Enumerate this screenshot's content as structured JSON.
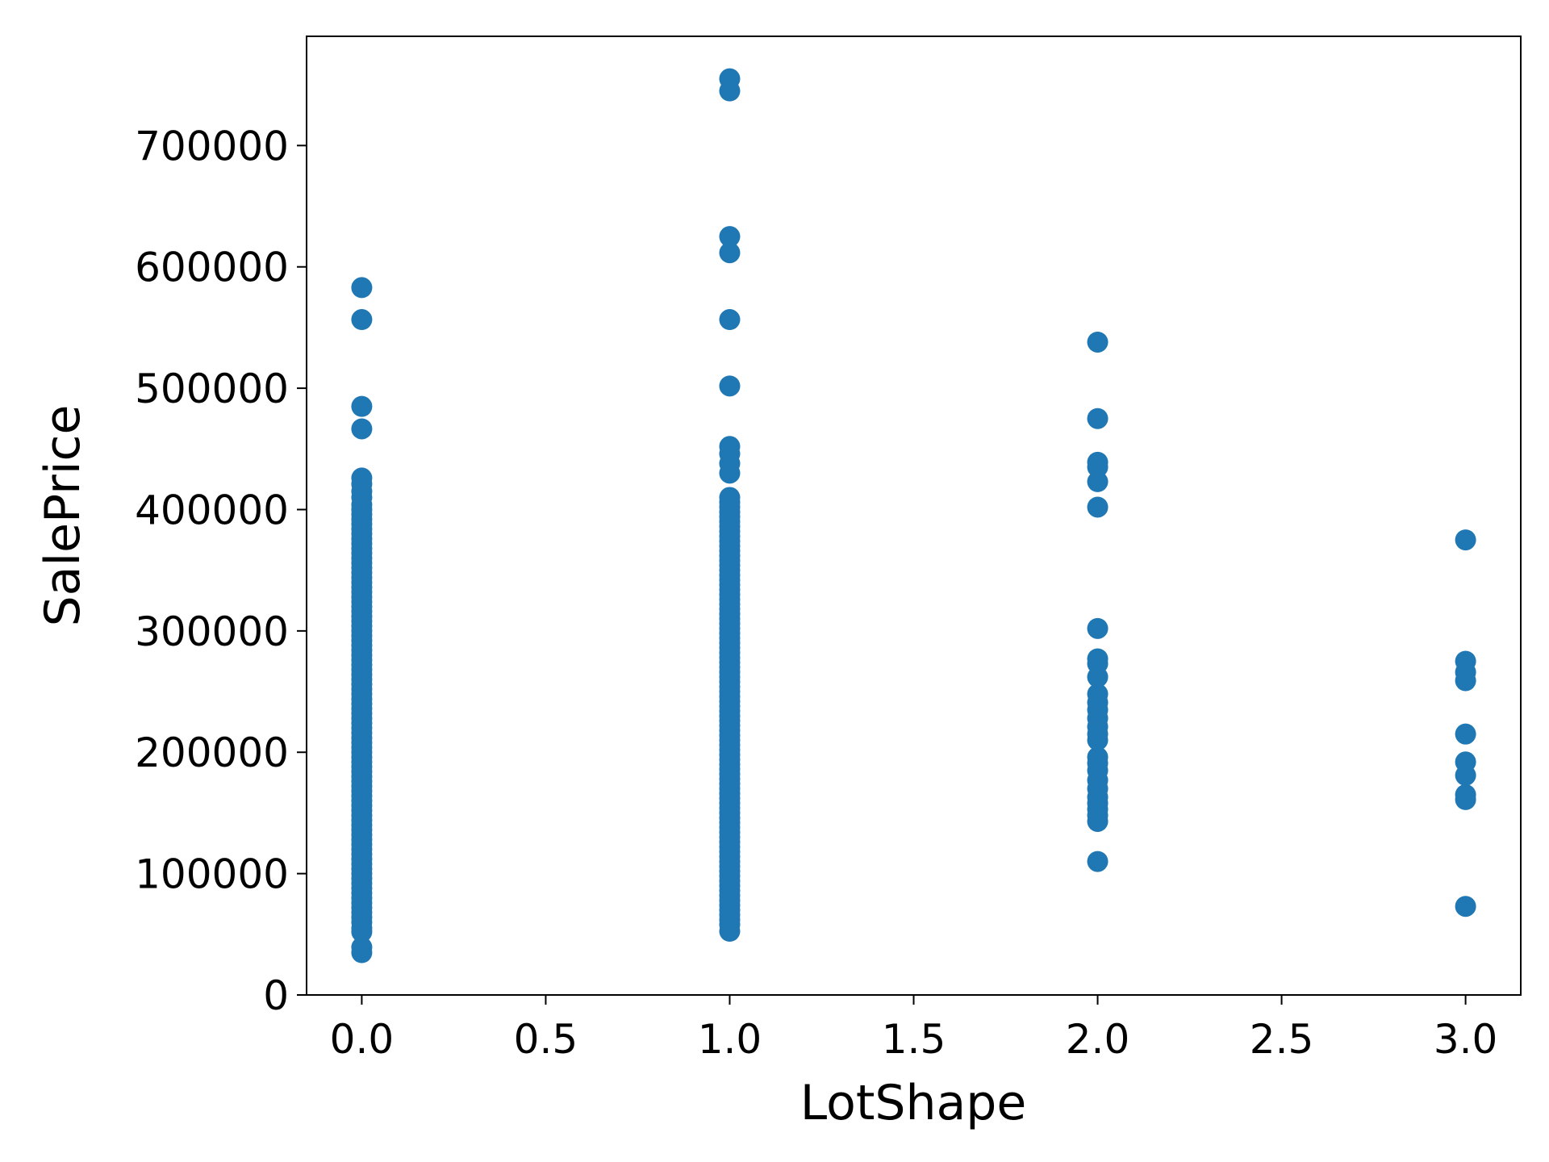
{
  "chart_data": {
    "type": "scatter",
    "title": "",
    "xlabel": "LotShape",
    "ylabel": "SalePrice",
    "xlim": [
      -0.15,
      3.15
    ],
    "ylim": [
      0,
      790000
    ],
    "grid": false,
    "color": "#1f77b4",
    "x_ticks": [
      {
        "value": 0.0,
        "label": "0.0"
      },
      {
        "value": 0.5,
        "label": "0.5"
      },
      {
        "value": 1.0,
        "label": "1.0"
      },
      {
        "value": 1.5,
        "label": "1.5"
      },
      {
        "value": 2.0,
        "label": "2.0"
      },
      {
        "value": 2.5,
        "label": "2.5"
      },
      {
        "value": 3.0,
        "label": "3.0"
      }
    ],
    "y_ticks": [
      {
        "value": 0,
        "label": "0"
      },
      {
        "value": 100000,
        "label": "100000"
      },
      {
        "value": 200000,
        "label": "200000"
      },
      {
        "value": 300000,
        "label": "300000"
      },
      {
        "value": 400000,
        "label": "400000"
      },
      {
        "value": 500000,
        "label": "500000"
      },
      {
        "value": 600000,
        "label": "600000"
      },
      {
        "value": 700000,
        "label": "700000"
      }
    ],
    "points": [
      {
        "x": 0,
        "y": 34900
      },
      {
        "x": 0,
        "y": 39300
      },
      {
        "x": 0,
        "y": 52000
      },
      {
        "x": 0,
        "y": 55000
      },
      {
        "x": 0,
        "y": 60000
      },
      {
        "x": 0,
        "y": 64000
      },
      {
        "x": 0,
        "y": 68000
      },
      {
        "x": 0,
        "y": 72000
      },
      {
        "x": 0,
        "y": 76000
      },
      {
        "x": 0,
        "y": 80000
      },
      {
        "x": 0,
        "y": 84000
      },
      {
        "x": 0,
        "y": 88000
      },
      {
        "x": 0,
        "y": 92000
      },
      {
        "x": 0,
        "y": 96000
      },
      {
        "x": 0,
        "y": 100000
      },
      {
        "x": 0,
        "y": 104000
      },
      {
        "x": 0,
        "y": 108000
      },
      {
        "x": 0,
        "y": 112000
      },
      {
        "x": 0,
        "y": 116000
      },
      {
        "x": 0,
        "y": 120000
      },
      {
        "x": 0,
        "y": 124000
      },
      {
        "x": 0,
        "y": 128000
      },
      {
        "x": 0,
        "y": 132000
      },
      {
        "x": 0,
        "y": 136000
      },
      {
        "x": 0,
        "y": 140000
      },
      {
        "x": 0,
        "y": 144000
      },
      {
        "x": 0,
        "y": 148000
      },
      {
        "x": 0,
        "y": 152000
      },
      {
        "x": 0,
        "y": 156000
      },
      {
        "x": 0,
        "y": 160000
      },
      {
        "x": 0,
        "y": 164000
      },
      {
        "x": 0,
        "y": 168000
      },
      {
        "x": 0,
        "y": 172000
      },
      {
        "x": 0,
        "y": 176000
      },
      {
        "x": 0,
        "y": 180000
      },
      {
        "x": 0,
        "y": 184000
      },
      {
        "x": 0,
        "y": 188000
      },
      {
        "x": 0,
        "y": 192000
      },
      {
        "x": 0,
        "y": 196000
      },
      {
        "x": 0,
        "y": 200000
      },
      {
        "x": 0,
        "y": 204000
      },
      {
        "x": 0,
        "y": 208000
      },
      {
        "x": 0,
        "y": 212000
      },
      {
        "x": 0,
        "y": 216000
      },
      {
        "x": 0,
        "y": 220000
      },
      {
        "x": 0,
        "y": 224000
      },
      {
        "x": 0,
        "y": 228000
      },
      {
        "x": 0,
        "y": 232000
      },
      {
        "x": 0,
        "y": 236000
      },
      {
        "x": 0,
        "y": 240000
      },
      {
        "x": 0,
        "y": 244000
      },
      {
        "x": 0,
        "y": 248000
      },
      {
        "x": 0,
        "y": 252000
      },
      {
        "x": 0,
        "y": 256000
      },
      {
        "x": 0,
        "y": 260000
      },
      {
        "x": 0,
        "y": 264000
      },
      {
        "x": 0,
        "y": 268000
      },
      {
        "x": 0,
        "y": 272000
      },
      {
        "x": 0,
        "y": 276000
      },
      {
        "x": 0,
        "y": 280000
      },
      {
        "x": 0,
        "y": 284000
      },
      {
        "x": 0,
        "y": 288000
      },
      {
        "x": 0,
        "y": 292000
      },
      {
        "x": 0,
        "y": 296000
      },
      {
        "x": 0,
        "y": 300000
      },
      {
        "x": 0,
        "y": 304000
      },
      {
        "x": 0,
        "y": 308000
      },
      {
        "x": 0,
        "y": 312000
      },
      {
        "x": 0,
        "y": 316000
      },
      {
        "x": 0,
        "y": 320000
      },
      {
        "x": 0,
        "y": 324000
      },
      {
        "x": 0,
        "y": 328000
      },
      {
        "x": 0,
        "y": 332000
      },
      {
        "x": 0,
        "y": 336000
      },
      {
        "x": 0,
        "y": 340000
      },
      {
        "x": 0,
        "y": 344000
      },
      {
        "x": 0,
        "y": 348000
      },
      {
        "x": 0,
        "y": 352000
      },
      {
        "x": 0,
        "y": 356000
      },
      {
        "x": 0,
        "y": 360000
      },
      {
        "x": 0,
        "y": 364000
      },
      {
        "x": 0,
        "y": 368000
      },
      {
        "x": 0,
        "y": 372000
      },
      {
        "x": 0,
        "y": 376000
      },
      {
        "x": 0,
        "y": 380000
      },
      {
        "x": 0,
        "y": 384000
      },
      {
        "x": 0,
        "y": 388000
      },
      {
        "x": 0,
        "y": 392000
      },
      {
        "x": 0,
        "y": 396000
      },
      {
        "x": 0,
        "y": 400000
      },
      {
        "x": 0,
        "y": 404000
      },
      {
        "x": 0,
        "y": 410000
      },
      {
        "x": 0,
        "y": 415000
      },
      {
        "x": 0,
        "y": 421000
      },
      {
        "x": 0,
        "y": 426000
      },
      {
        "x": 0,
        "y": 466500
      },
      {
        "x": 0,
        "y": 485000
      },
      {
        "x": 0,
        "y": 556581
      },
      {
        "x": 0,
        "y": 582933
      },
      {
        "x": 1,
        "y": 52500
      },
      {
        "x": 1,
        "y": 58000
      },
      {
        "x": 1,
        "y": 62000
      },
      {
        "x": 1,
        "y": 66000
      },
      {
        "x": 1,
        "y": 70000
      },
      {
        "x": 1,
        "y": 74000
      },
      {
        "x": 1,
        "y": 78000
      },
      {
        "x": 1,
        "y": 82000
      },
      {
        "x": 1,
        "y": 86000
      },
      {
        "x": 1,
        "y": 90000
      },
      {
        "x": 1,
        "y": 94000
      },
      {
        "x": 1,
        "y": 98000
      },
      {
        "x": 1,
        "y": 102000
      },
      {
        "x": 1,
        "y": 106000
      },
      {
        "x": 1,
        "y": 110000
      },
      {
        "x": 1,
        "y": 114000
      },
      {
        "x": 1,
        "y": 118000
      },
      {
        "x": 1,
        "y": 122000
      },
      {
        "x": 1,
        "y": 126000
      },
      {
        "x": 1,
        "y": 130000
      },
      {
        "x": 1,
        "y": 134000
      },
      {
        "x": 1,
        "y": 138000
      },
      {
        "x": 1,
        "y": 142000
      },
      {
        "x": 1,
        "y": 146000
      },
      {
        "x": 1,
        "y": 150000
      },
      {
        "x": 1,
        "y": 154000
      },
      {
        "x": 1,
        "y": 158000
      },
      {
        "x": 1,
        "y": 162000
      },
      {
        "x": 1,
        "y": 166000
      },
      {
        "x": 1,
        "y": 170000
      },
      {
        "x": 1,
        "y": 174000
      },
      {
        "x": 1,
        "y": 178000
      },
      {
        "x": 1,
        "y": 182000
      },
      {
        "x": 1,
        "y": 186000
      },
      {
        "x": 1,
        "y": 190000
      },
      {
        "x": 1,
        "y": 194000
      },
      {
        "x": 1,
        "y": 198000
      },
      {
        "x": 1,
        "y": 202000
      },
      {
        "x": 1,
        "y": 206000
      },
      {
        "x": 1,
        "y": 210000
      },
      {
        "x": 1,
        "y": 214000
      },
      {
        "x": 1,
        "y": 218000
      },
      {
        "x": 1,
        "y": 222000
      },
      {
        "x": 1,
        "y": 226000
      },
      {
        "x": 1,
        "y": 230000
      },
      {
        "x": 1,
        "y": 234000
      },
      {
        "x": 1,
        "y": 238000
      },
      {
        "x": 1,
        "y": 242000
      },
      {
        "x": 1,
        "y": 246000
      },
      {
        "x": 1,
        "y": 250000
      },
      {
        "x": 1,
        "y": 254000
      },
      {
        "x": 1,
        "y": 258000
      },
      {
        "x": 1,
        "y": 262000
      },
      {
        "x": 1,
        "y": 266000
      },
      {
        "x": 1,
        "y": 270000
      },
      {
        "x": 1,
        "y": 274000
      },
      {
        "x": 1,
        "y": 278000
      },
      {
        "x": 1,
        "y": 282000
      },
      {
        "x": 1,
        "y": 286000
      },
      {
        "x": 1,
        "y": 290000
      },
      {
        "x": 1,
        "y": 294000
      },
      {
        "x": 1,
        "y": 298000
      },
      {
        "x": 1,
        "y": 302000
      },
      {
        "x": 1,
        "y": 306000
      },
      {
        "x": 1,
        "y": 310000
      },
      {
        "x": 1,
        "y": 314000
      },
      {
        "x": 1,
        "y": 318000
      },
      {
        "x": 1,
        "y": 322000
      },
      {
        "x": 1,
        "y": 326000
      },
      {
        "x": 1,
        "y": 330000
      },
      {
        "x": 1,
        "y": 334000
      },
      {
        "x": 1,
        "y": 338000
      },
      {
        "x": 1,
        "y": 342000
      },
      {
        "x": 1,
        "y": 346000
      },
      {
        "x": 1,
        "y": 350000
      },
      {
        "x": 1,
        "y": 354000
      },
      {
        "x": 1,
        "y": 358000
      },
      {
        "x": 1,
        "y": 362000
      },
      {
        "x": 1,
        "y": 366000
      },
      {
        "x": 1,
        "y": 370000
      },
      {
        "x": 1,
        "y": 374000
      },
      {
        "x": 1,
        "y": 378000
      },
      {
        "x": 1,
        "y": 382000
      },
      {
        "x": 1,
        "y": 386000
      },
      {
        "x": 1,
        "y": 390000
      },
      {
        "x": 1,
        "y": 394000
      },
      {
        "x": 1,
        "y": 398000
      },
      {
        "x": 1,
        "y": 402000
      },
      {
        "x": 1,
        "y": 406000
      },
      {
        "x": 1,
        "y": 410000
      },
      {
        "x": 1,
        "y": 430000
      },
      {
        "x": 1,
        "y": 438000
      },
      {
        "x": 1,
        "y": 446000
      },
      {
        "x": 1,
        "y": 452000
      },
      {
        "x": 1,
        "y": 501837
      },
      {
        "x": 1,
        "y": 556581
      },
      {
        "x": 1,
        "y": 611657
      },
      {
        "x": 1,
        "y": 625000
      },
      {
        "x": 1,
        "y": 745000
      },
      {
        "x": 1,
        "y": 755000
      },
      {
        "x": 2,
        "y": 110000
      },
      {
        "x": 2,
        "y": 143000
      },
      {
        "x": 2,
        "y": 148000
      },
      {
        "x": 2,
        "y": 153000
      },
      {
        "x": 2,
        "y": 158000
      },
      {
        "x": 2,
        "y": 163000
      },
      {
        "x": 2,
        "y": 170000
      },
      {
        "x": 2,
        "y": 177000
      },
      {
        "x": 2,
        "y": 185000
      },
      {
        "x": 2,
        "y": 191000
      },
      {
        "x": 2,
        "y": 196000
      },
      {
        "x": 2,
        "y": 210000
      },
      {
        "x": 2,
        "y": 215000
      },
      {
        "x": 2,
        "y": 221000
      },
      {
        "x": 2,
        "y": 228000
      },
      {
        "x": 2,
        "y": 235000
      },
      {
        "x": 2,
        "y": 241000
      },
      {
        "x": 2,
        "y": 248000
      },
      {
        "x": 2,
        "y": 262000
      },
      {
        "x": 2,
        "y": 273000
      },
      {
        "x": 2,
        "y": 277000
      },
      {
        "x": 2,
        "y": 302000
      },
      {
        "x": 2,
        "y": 402000
      },
      {
        "x": 2,
        "y": 423000
      },
      {
        "x": 2,
        "y": 435000
      },
      {
        "x": 2,
        "y": 439000
      },
      {
        "x": 2,
        "y": 475000
      },
      {
        "x": 2,
        "y": 538000
      },
      {
        "x": 3,
        "y": 73000
      },
      {
        "x": 3,
        "y": 161000
      },
      {
        "x": 3,
        "y": 165000
      },
      {
        "x": 3,
        "y": 181000
      },
      {
        "x": 3,
        "y": 192000
      },
      {
        "x": 3,
        "y": 215000
      },
      {
        "x": 3,
        "y": 259000
      },
      {
        "x": 3,
        "y": 266000
      },
      {
        "x": 3,
        "y": 275000
      },
      {
        "x": 3,
        "y": 375000
      }
    ]
  }
}
